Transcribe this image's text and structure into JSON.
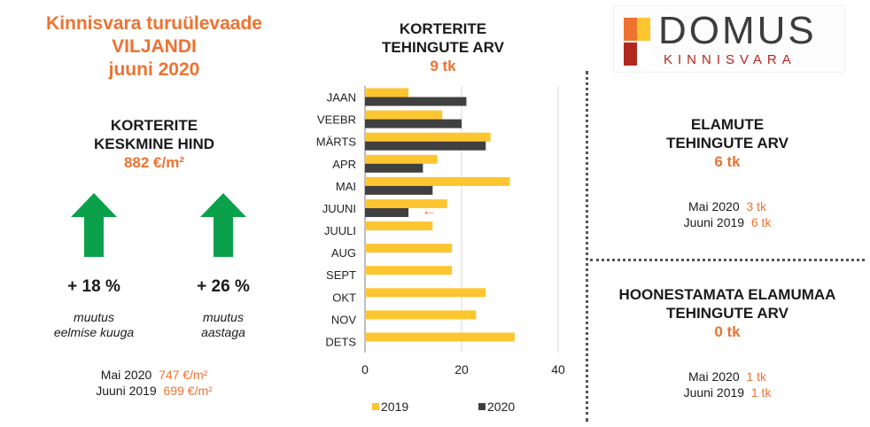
{
  "header": {
    "title_line1": "Kinnisvara turuülevaade",
    "title_line2": "VILJANDI",
    "title_line3": "juuni 2020"
  },
  "price": {
    "heading_line1": "KORTERITE",
    "heading_line2": "KESKMINE HIND",
    "value": "882 €/m²",
    "monthly_change": "+ 18 %",
    "monthly_label_line1": "muutus",
    "monthly_label_line2": "eelmise kuuga",
    "yearly_change": "+ 26 %",
    "yearly_label_line1": "muutus",
    "yearly_label_line2": "aastaga",
    "compare1_label": "Mai 2020",
    "compare1_value": "747 €/m²",
    "compare2_label": "Juuni 2019",
    "compare2_value": "699 €/m²",
    "arrow_icon": "up-arrow-icon",
    "arrow_color": "#0aa14a"
  },
  "chart_title": {
    "line1": "KORTERITE",
    "line2": "TEHINGUTE ARV",
    "value": "9 tk"
  },
  "chart_data": {
    "type": "bar",
    "orientation": "horizontal",
    "categories": [
      "JAAN",
      "VEEBR",
      "MÄRTS",
      "APR",
      "MAI",
      "JUUNI",
      "JUULI",
      "AUG",
      "SEPT",
      "OKT",
      "NOV",
      "DETS"
    ],
    "series": [
      {
        "name": "2019",
        "color": "#fdc530",
        "values": [
          9,
          16,
          26,
          15,
          30,
          17,
          14,
          18,
          18,
          25,
          23,
          31
        ]
      },
      {
        "name": "2020",
        "color": "#404040",
        "values": [
          21,
          20,
          25,
          12,
          14,
          9,
          null,
          null,
          null,
          null,
          null,
          null
        ]
      }
    ],
    "xlim": [
      0,
      40
    ],
    "xticks": [
      "0",
      "20",
      "40"
    ],
    "grid": true,
    "legend_placement": "bottom",
    "annotation": {
      "category": "JUUNI",
      "glyph": "←",
      "color": "#ee7230"
    }
  },
  "logo": {
    "brand": "DOMUS",
    "sub": "KINNISVARA",
    "colors": [
      "#ee7230",
      "#fdc530",
      "#b0281e"
    ]
  },
  "houses": {
    "heading_line1": "ELAMUTE",
    "heading_line2": "TEHINGUTE ARV",
    "value": "6 tk",
    "compare1_label": "Mai 2020",
    "compare1_value": "3 tk",
    "compare2_label": "Juuni 2019",
    "compare2_value": "6 tk"
  },
  "land": {
    "heading_line1": "HOONESTAMATA ELAMUMAA",
    "heading_line2": "TEHINGUTE ARV",
    "value": "0 tk",
    "compare1_label": "Mai 2020",
    "compare1_value": "1 tk",
    "compare2_label": "Juuni 2019",
    "compare2_value": "1 tk"
  }
}
